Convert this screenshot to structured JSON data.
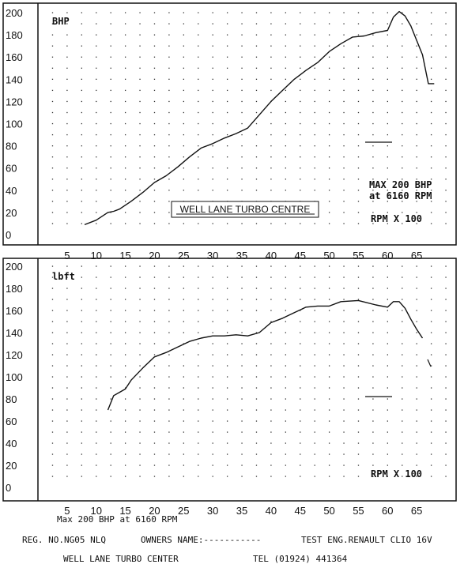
{
  "chart_data": [
    {
      "type": "line",
      "ylabel": "BHP",
      "xlabel": "RPM X 100",
      "xlim": [
        0,
        70
      ],
      "ylim": [
        0,
        200
      ],
      "xticks": [
        "5",
        "10",
        "15",
        "20",
        "25",
        "30",
        "35",
        "40",
        "45",
        "50",
        "55",
        "60",
        "65"
      ],
      "yticks": [
        "0",
        "20",
        "40",
        "60",
        "80",
        "100",
        "120",
        "140",
        "160",
        "180",
        "200"
      ],
      "grid": true,
      "annotation_lines": [
        "MAX 200 BHP",
        "at 6160 RPM"
      ],
      "boxed_label": "WELL LANE TURBO CENTRE",
      "series": [
        {
          "x": [
            8,
            10,
            12,
            13,
            14,
            16,
            18,
            20,
            22,
            24,
            26,
            28,
            30,
            32,
            34,
            36,
            38,
            40,
            42,
            44,
            46,
            48,
            50,
            52,
            54,
            56,
            58,
            60,
            61,
            62,
            63,
            64,
            65,
            66,
            67,
            68
          ],
          "y": [
            9,
            13,
            20,
            21,
            23,
            30,
            38,
            47,
            53,
            61,
            70,
            78,
            82,
            87,
            91,
            96,
            108,
            120,
            130,
            140,
            148,
            155,
            165,
            172,
            178,
            179,
            182,
            184,
            196,
            201,
            197,
            188,
            175,
            162,
            136,
            136
          ]
        }
      ]
    },
    {
      "type": "line",
      "ylabel": "lbft",
      "xlabel": "RPM X 100",
      "xlim": [
        0,
        70
      ],
      "ylim": [
        0,
        200
      ],
      "xticks": [
        "5",
        "10",
        "15",
        "20",
        "25",
        "30",
        "35",
        "40",
        "45",
        "50",
        "55",
        "60",
        "65"
      ],
      "yticks": [
        "0",
        "20",
        "40",
        "60",
        "80",
        "100",
        "120",
        "140",
        "160",
        "180",
        "200"
      ],
      "grid": true,
      "series": [
        {
          "x": [
            12,
            13,
            14,
            15,
            16,
            18,
            20,
            22,
            24,
            26,
            28,
            30,
            32,
            34,
            36,
            38,
            40,
            42,
            44,
            46,
            48,
            50,
            52,
            55,
            58,
            60,
            61,
            62,
            63,
            64,
            65,
            66
          ],
          "y": [
            70,
            83,
            86,
            89,
            97,
            108,
            118,
            122,
            127,
            132,
            135,
            137,
            137,
            138,
            137,
            140,
            149,
            153,
            158,
            163,
            164,
            164,
            168,
            169,
            165,
            163,
            168,
            168,
            162,
            152,
            143,
            135
          ]
        }
      ]
    }
  ],
  "footer": {
    "line1": "Max 200 BHP at 6160 RPM",
    "reg": "REG. NO.NG05 NLQ",
    "owners": "OWNERS NAME:-----------",
    "test": "TEST ENG.RENAULT CLIO 16V",
    "centre": "WELL LANE TURBO CENTER",
    "tel": "TEL (01924) 441364"
  }
}
